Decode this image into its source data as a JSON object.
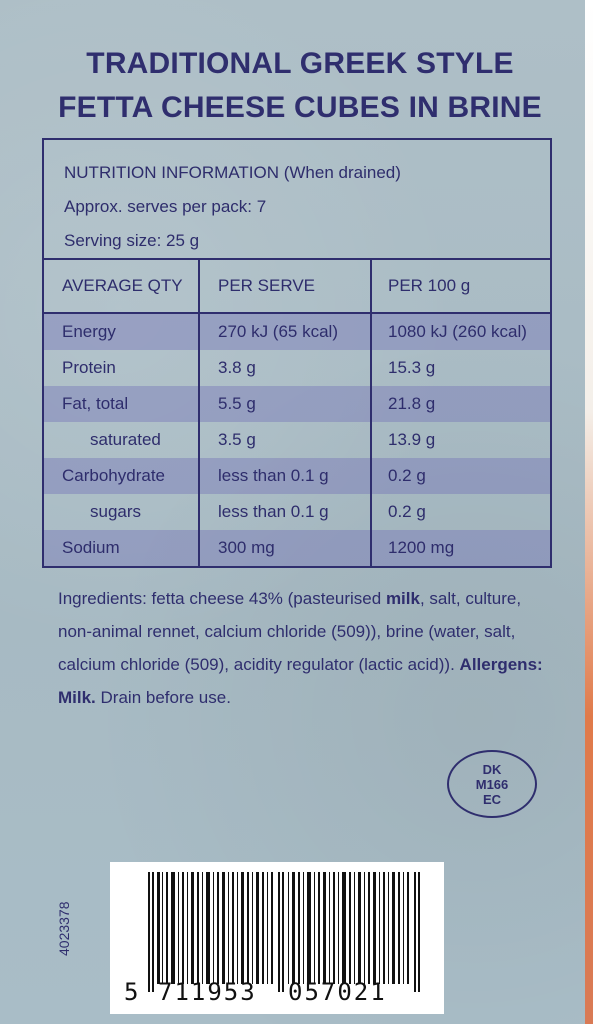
{
  "title": {
    "line1": "TRADITIONAL GREEK STYLE",
    "line2": "FETTA CHEESE CUBES IN BRINE"
  },
  "nutrition": {
    "heading": "NUTRITION INFORMATION (When drained)",
    "serves": "Approx. serves per pack: 7",
    "serving_size": "Serving size: 25 g",
    "columns": [
      "AVERAGE QTY",
      "PER SERVE",
      "PER 100 g"
    ],
    "rows": [
      {
        "name": "Energy",
        "per_serve": "270 kJ (65 kcal)",
        "per_100g": "1080 kJ (260 kcal)",
        "indent": false,
        "shaded": true
      },
      {
        "name": "Protein",
        "per_serve": "3.8 g",
        "per_100g": "15.3 g",
        "indent": false,
        "shaded": false
      },
      {
        "name": "Fat, total",
        "per_serve": "5.5 g",
        "per_100g": "21.8 g",
        "indent": false,
        "shaded": true
      },
      {
        "name": "saturated",
        "per_serve": "3.5 g",
        "per_100g": "13.9 g",
        "indent": true,
        "shaded": false
      },
      {
        "name": "Carbohydrate",
        "per_serve": "less than 0.1 g",
        "per_100g": "0.2 g",
        "indent": false,
        "shaded": true
      },
      {
        "name": "sugars",
        "per_serve": "less than 0.1 g",
        "per_100g": "0.2 g",
        "indent": true,
        "shaded": false
      },
      {
        "name": "Sodium",
        "per_serve": "300 mg",
        "per_100g": "1200 mg",
        "indent": false,
        "shaded": true
      }
    ]
  },
  "ingredients": {
    "part1": "Ingredients: fetta cheese 43% (pasteurised ",
    "milk_bold": "milk",
    "part2": ", salt, culture, non-animal rennet, calcium chloride (509)), brine (water, salt, calcium chloride (509), acidity regulator (lactic acid)). ",
    "allergens_label": "Allergens: Milk.",
    "part3": " Drain before use."
  },
  "health_mark": {
    "line1": "DK",
    "line2": "M166",
    "line3": "EC"
  },
  "barcode": {
    "first_digit": "5",
    "left_group": "711953",
    "right_group": "057021"
  },
  "side_code": "4023378"
}
